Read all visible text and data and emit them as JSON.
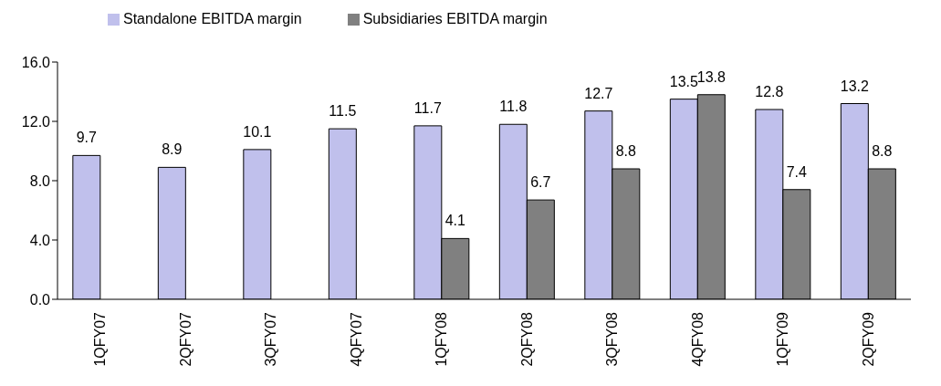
{
  "chart_data": {
    "type": "bar",
    "categories": [
      "1QFY07",
      "2QFY07",
      "3QFY07",
      "4QFY07",
      "1QFY08",
      "2QFY08",
      "3QFY08",
      "4QFY08",
      "1QFY09",
      "2QFY09"
    ],
    "series": [
      {
        "name": "Standalone EBITDA margin",
        "color": "#c0c0ec",
        "values": [
          9.7,
          8.9,
          10.1,
          11.5,
          11.7,
          11.8,
          12.7,
          13.5,
          12.8,
          13.2
        ]
      },
      {
        "name": "Subsidiaries EBITDA margin",
        "color": "#808080",
        "values": [
          null,
          null,
          null,
          null,
          4.1,
          6.7,
          8.8,
          13.8,
          7.4,
          8.8
        ]
      }
    ],
    "ylim": [
      0,
      16
    ],
    "yticks": [
      {
        "value": 0,
        "label": "0.0"
      },
      {
        "value": 4,
        "label": "4.0"
      },
      {
        "value": 8,
        "label": "8.0"
      },
      {
        "value": 12,
        "label": "12.0"
      },
      {
        "value": 16,
        "label": "16.0"
      }
    ],
    "grid": false,
    "legend": "top left",
    "data_labels": true
  }
}
